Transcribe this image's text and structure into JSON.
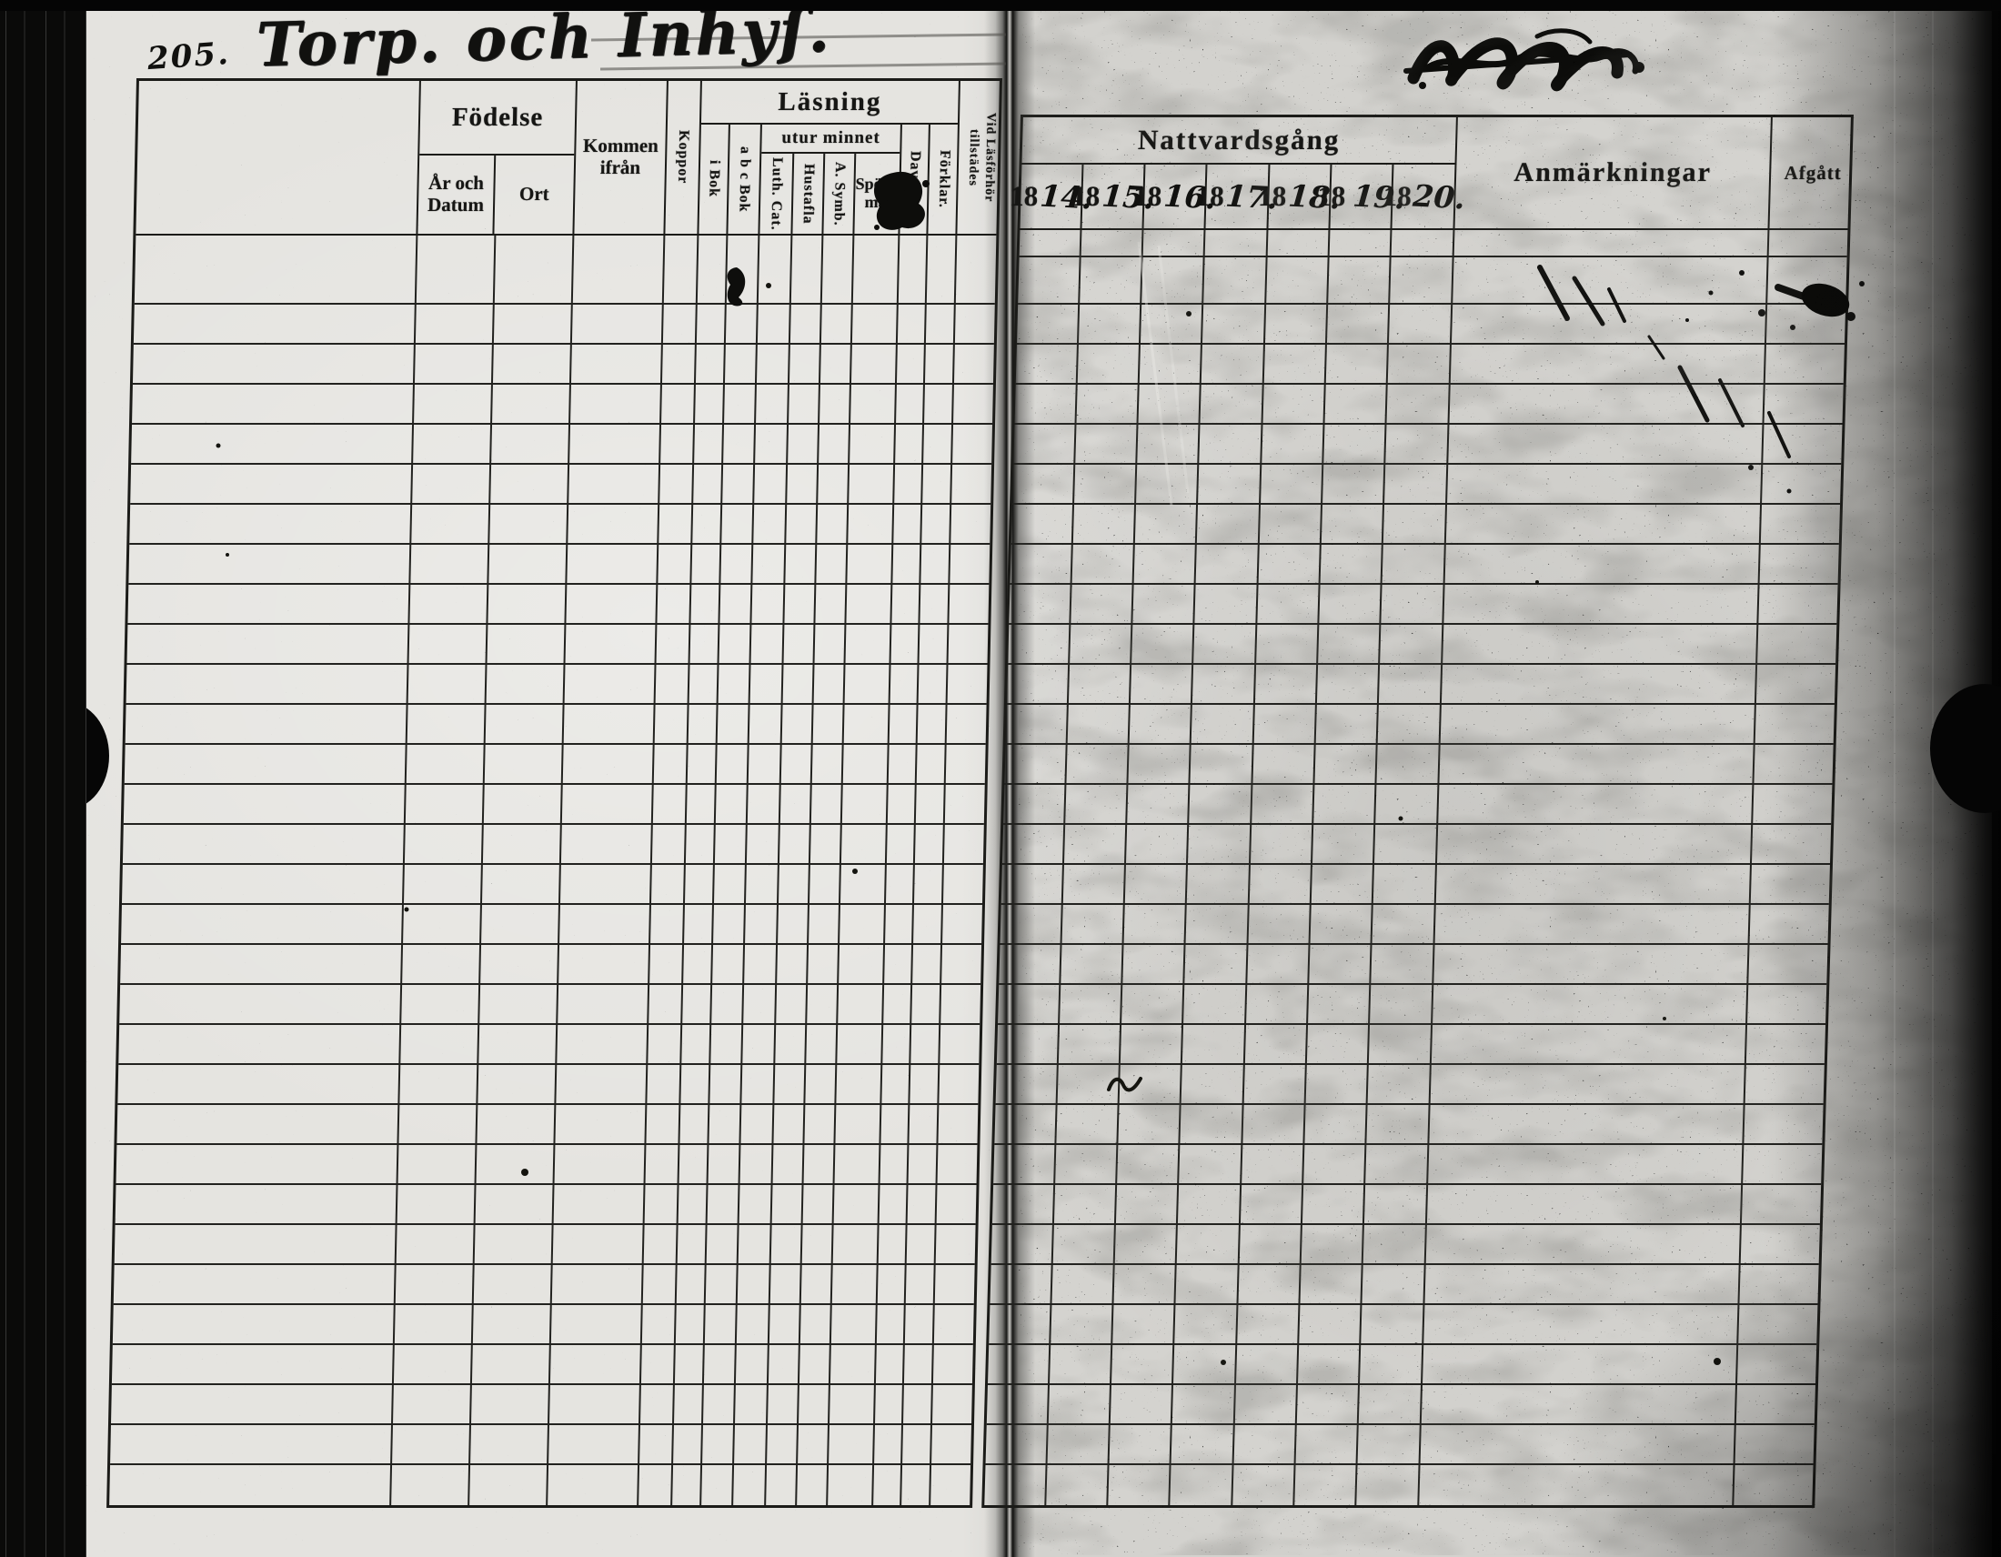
{
  "colors": {
    "ink": "#1b1b18",
    "paper_left": "#e4e3df",
    "paper_right": "#d3d2ce"
  },
  "document": {
    "page_number": "205.",
    "handwritten_title": "Torp. och Inhyſ.",
    "top_right_note": "illegible crossed-out ink scribble"
  },
  "left_table": {
    "rows": 31,
    "cells_per_row": 14,
    "columns": {
      "name_header": "",
      "fodelse": {
        "label": "Födelse",
        "ar_och": "År och",
        "datum": "Datum",
        "ort": "Ort"
      },
      "kommen_ifran": {
        "line1": "Kommen",
        "line2": "ifrån"
      },
      "koppor": "Koppor",
      "lasning": {
        "label": "Läsning",
        "i_bok": "i Bok",
        "abc_bok": "a b c Bok",
        "utur_minnet": {
          "label": "utur minnet",
          "luth_cat": "Luth. Cat.",
          "hustafla": "Hustafla",
          "a_symb": "A. Symb.",
          "sporsmal_1": "Spörs-",
          "sporsmal_2": "mål"
        },
        "dav_ps": "Dav. Ps.",
        "forklar": "Förklar."
      },
      "vid_lasforhor": {
        "line1": "Vid Läsförhör",
        "line2": "tillstädes"
      }
    }
  },
  "right_table": {
    "rows": 32,
    "cells_per_row": 9,
    "nattvardsgang_label": "Nattvardsgång",
    "years": [
      {
        "printed": "18",
        "written": "14."
      },
      {
        "printed": "18",
        "written": "15."
      },
      {
        "printed": "18",
        "written": "16."
      },
      {
        "printed": "18",
        "written": "17."
      },
      {
        "printed": "18",
        "written": "18."
      },
      {
        "printed": "18",
        "written": "19."
      },
      {
        "printed": "18",
        "written": "20."
      }
    ],
    "anmarkningar_label": "Anmärkningar",
    "afgatt_label": "Afgått"
  }
}
